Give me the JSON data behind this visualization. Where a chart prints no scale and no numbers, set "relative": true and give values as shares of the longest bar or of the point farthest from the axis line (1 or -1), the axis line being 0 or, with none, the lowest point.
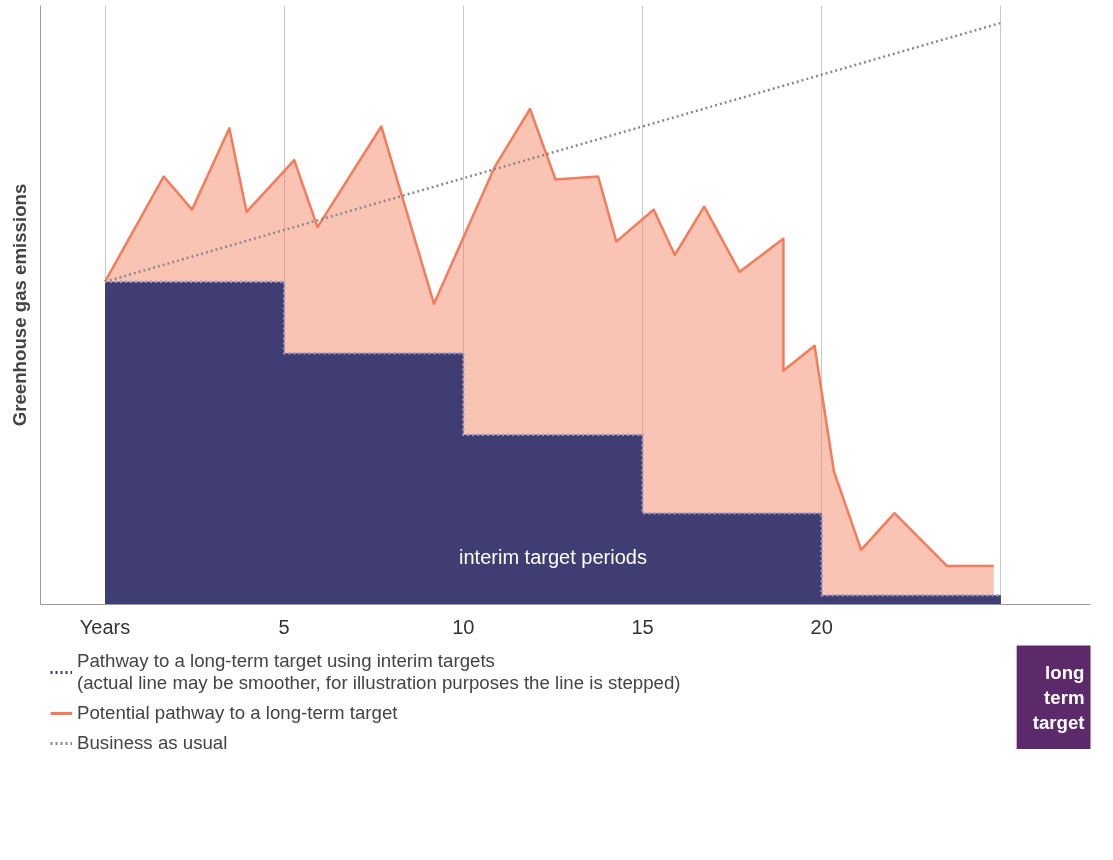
{
  "chart_data": {
    "type": "area",
    "relative": true,
    "ylabel": "Greenhouse gas emissions",
    "xlim": [
      -1.8,
      27.5
    ],
    "xticks": [
      {
        "value": 0,
        "label": "Years"
      },
      5,
      10,
      15,
      20,
      {
        "value": 25,
        "label": null
      }
    ],
    "grid": "x",
    "legend": "bottom",
    "series": [
      {
        "name": "Pathway to a long-term target using interim targets\n(actual line may be smoother, for illustration purposes the line is stepped)",
        "color": "#3f3d72",
        "line_style": "dotted",
        "x": [
          0,
          5,
          5,
          10,
          10,
          15,
          15,
          20,
          20,
          25
        ],
        "values": [
          0.555,
          0.555,
          0.432,
          0.432,
          0.292,
          0.292,
          0.157,
          0.157,
          0.016,
          0.016
        ]
      },
      {
        "name": "Potential pathway to a long-term target",
        "color": "#f47c5a",
        "line_style": "solid",
        "x": [
          0,
          1.64,
          2.43,
          3.47,
          3.95,
          5.28,
          5.93,
          7.71,
          9.18,
          10.88,
          11.86,
          12.57,
          13.76,
          14.27,
          15.31,
          15.9,
          16.72,
          17.71,
          18.93,
          18.93,
          19.8,
          20.34,
          21.1,
          22.03,
          23.5,
          24.8
        ],
        "values": [
          0.555,
          0.736,
          0.679,
          0.819,
          0.675,
          0.764,
          0.649,
          0.822,
          0.517,
          0.753,
          0.852,
          0.731,
          0.736,
          0.624,
          0.679,
          0.601,
          0.684,
          0.572,
          0.629,
          0.402,
          0.445,
          0.229,
          0.094,
          0.157,
          0.066,
          0.066
        ]
      },
      {
        "name": "Business as usual",
        "type": "line",
        "color": "#8a8a8a",
        "line_style": "dotted",
        "x": [
          0,
          25
        ],
        "values": [
          0.555,
          1.0
        ]
      }
    ],
    "annotations": [
      "interim target periods",
      "long\nterm\ntarget"
    ]
  }
}
